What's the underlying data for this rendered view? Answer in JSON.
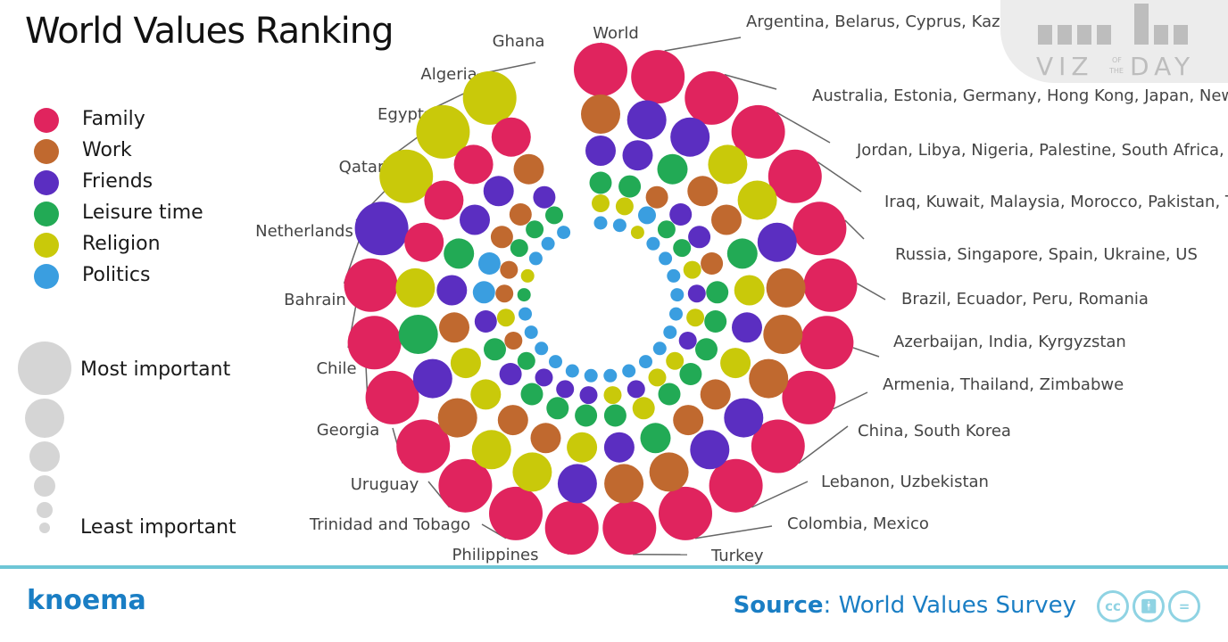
{
  "title": "World Values Ranking",
  "legend": [
    {
      "label": "Family",
      "color": "#e0245e"
    },
    {
      "label": "Work",
      "color": "#c0692f"
    },
    {
      "label": "Friends",
      "color": "#5b2ec1"
    },
    {
      "label": "Leisure time",
      "color": "#22aa55"
    },
    {
      "label": "Religion",
      "color": "#c9c90a"
    },
    {
      "label": "Politics",
      "color": "#3a9ee0"
    }
  ],
  "size_legend": {
    "most": "Most important",
    "least": "Least important"
  },
  "footer": {
    "brand": "knoema",
    "source_label": "Source",
    "source_text": ": World Values Survey"
  },
  "watermark": {
    "text": "VIZ OF THE DAY"
  },
  "chart_data": {
    "type": "radial-ranking",
    "description_of_encoding": "Each spoke is a country group; ring 1 (outermost) = most important value, ring 6 (innermost) = least important.",
    "rank_order": [
      "most important",
      "2nd",
      "3rd",
      "4th",
      "5th",
      "least important"
    ],
    "groups": [
      {
        "label": "World",
        "ranks": [
          "Family",
          "Work",
          "Friends",
          "Leisure time",
          "Religion",
          "Politics"
        ]
      },
      {
        "label": "Argentina, Belarus, Cyprus, Kazakhstan, Poland, Rwanda, Slovenia, Taiwan",
        "ranks": [
          "Family",
          "Friends",
          "Friends",
          "Leisure time",
          "Religion",
          "Politics"
        ]
      },
      {
        "label": "Australia, Estonia, Germany, Hong Kong, Japan, New Zealand, Sweden",
        "ranks": [
          "Family",
          "Friends",
          "Leisure time",
          "Work",
          "Politics",
          "Religion"
        ]
      },
      {
        "label": "Jordan, Libya, Nigeria, Palestine, South Africa, Yemen",
        "ranks": [
          "Family",
          "Religion",
          "Work",
          "Friends",
          "Leisure time",
          "Politics"
        ]
      },
      {
        "label": "Iraq, Kuwait, Malaysia, Morocco, Pakistan, Tunisia",
        "ranks": [
          "Family",
          "Religion",
          "Work",
          "Friends",
          "Leisure time",
          "Politics"
        ]
      },
      {
        "label": "Russia, Singapore, Spain, Ukraine, US",
        "ranks": [
          "Family",
          "Friends",
          "Leisure time",
          "Work",
          "Religion",
          "Politics"
        ]
      },
      {
        "label": "Brazil, Ecuador, Peru, Romania",
        "ranks": [
          "Family",
          "Work",
          "Religion",
          "Leisure time",
          "Friends",
          "Politics"
        ]
      },
      {
        "label": "Azerbaijan, India, Kyrgyzstan",
        "ranks": [
          "Family",
          "Work",
          "Friends",
          "Leisure time",
          "Religion",
          "Politics"
        ]
      },
      {
        "label": "Armenia, Thailand, Zimbabwe",
        "ranks": [
          "Family",
          "Work",
          "Religion",
          "Leisure time",
          "Friends",
          "Politics"
        ]
      },
      {
        "label": "China, South Korea",
        "ranks": [
          "Family",
          "Friends",
          "Work",
          "Leisure time",
          "Religion",
          "Politics"
        ]
      },
      {
        "label": "Lebanon, Uzbekistan",
        "ranks": [
          "Family",
          "Friends",
          "Work",
          "Leisure time",
          "Religion",
          "Politics"
        ]
      },
      {
        "label": "Colombia, Mexico",
        "ranks": [
          "Family",
          "Work",
          "Leisure time",
          "Religion",
          "Friends",
          "Politics"
        ]
      },
      {
        "label": "Turkey",
        "ranks": [
          "Family",
          "Work",
          "Friends",
          "Leisure time",
          "Religion",
          "Politics"
        ]
      },
      {
        "label": "Philippines",
        "ranks": [
          "Family",
          "Friends",
          "Religion",
          "Leisure time",
          "Friends",
          "Politics"
        ]
      },
      {
        "label": "Trinidad and Tobago",
        "ranks": [
          "Family",
          "Religion",
          "Work",
          "Leisure time",
          "Friends",
          "Politics"
        ]
      },
      {
        "label": "Uruguay",
        "ranks": [
          "Family",
          "Religion",
          "Work",
          "Leisure time",
          "Friends",
          "Politics"
        ]
      },
      {
        "label": "Georgia",
        "ranks": [
          "Family",
          "Work",
          "Religion",
          "Friends",
          "Leisure time",
          "Politics"
        ]
      },
      {
        "label": "Chile",
        "ranks": [
          "Family",
          "Friends",
          "Religion",
          "Leisure time",
          "Work",
          "Politics"
        ]
      },
      {
        "label": "Bahrain",
        "ranks": [
          "Family",
          "Leisure time",
          "Work",
          "Friends",
          "Religion",
          "Politics"
        ]
      },
      {
        "label": "Netherlands",
        "ranks": [
          "Family",
          "Religion",
          "Friends",
          "Politics",
          "Work",
          "Leisure time"
        ]
      },
      {
        "label": "Qatar",
        "ranks": [
          "Friends",
          "Family",
          "Leisure time",
          "Politics",
          "Work",
          "Religion"
        ]
      },
      {
        "label": "Egypt",
        "ranks": [
          "Religion",
          "Family",
          "Friends",
          "Work",
          "Leisure time",
          "Politics"
        ]
      },
      {
        "label": "Algeria",
        "ranks": [
          "Religion",
          "Family",
          "Friends",
          "Work",
          "Leisure time",
          "Politics"
        ]
      },
      {
        "label": "Ghana",
        "ranks": [
          "Religion",
          "Family",
          "Work",
          "Friends",
          "Leisure time",
          "Politics"
        ]
      },
      {
        "label": "Ghana",
        "ranks": [
          "Work",
          "Family",
          "Religion",
          "Leisure time",
          "Friends",
          "Politics"
        ]
      }
    ]
  }
}
